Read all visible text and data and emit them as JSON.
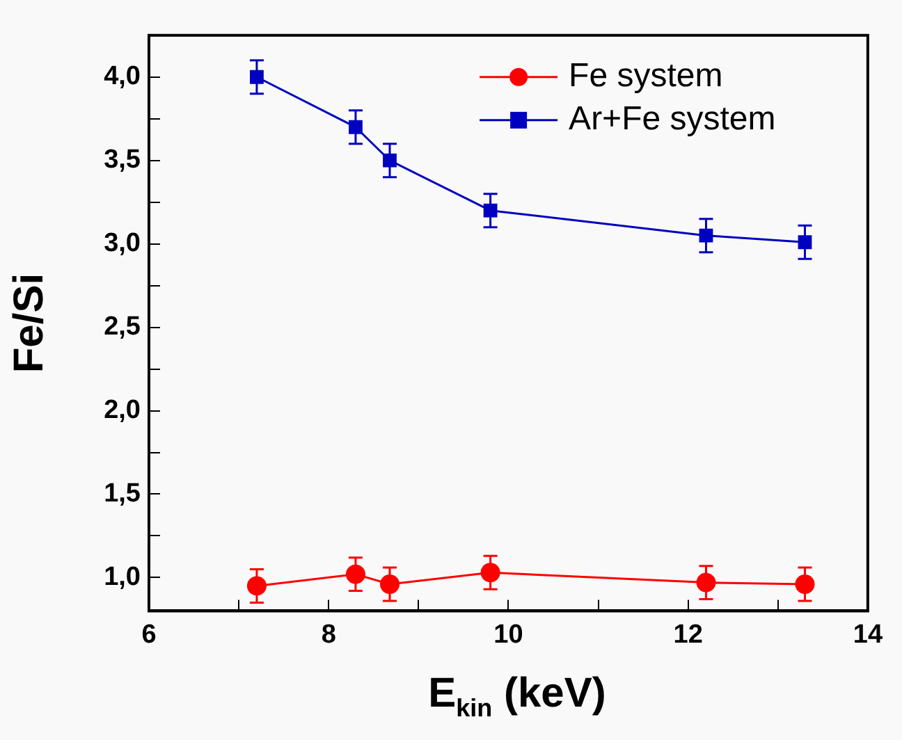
{
  "chart_data": {
    "type": "line",
    "xlabel": "E$_{kin}$ (keV)",
    "ylabel": "Fe/Si",
    "xlim": [
      6,
      14
    ],
    "xticks": [
      6,
      {
        "value": 7,
        "label": null
      },
      8,
      {
        "value": 9,
        "label": null
      },
      10,
      {
        "value": 11,
        "label": null
      },
      12,
      {
        "value": 13,
        "label": null
      },
      14
    ],
    "ylim": [
      0.8,
      4.25
    ],
    "yticks": [
      {
        "value": 1,
        "label": "1,0"
      },
      {
        "value": 1.25,
        "label": null
      },
      {
        "value": 1.5,
        "label": "1,5"
      },
      {
        "value": 1.75,
        "label": null
      },
      {
        "value": 2,
        "label": "2,0"
      },
      {
        "value": 2.25,
        "label": null
      },
      {
        "value": 2.5,
        "label": "2,5"
      },
      {
        "value": 2.75,
        "label": null
      },
      {
        "value": 3,
        "label": "3,0"
      },
      {
        "value": 3.25,
        "label": null
      },
      {
        "value": 3.5,
        "label": "3,5"
      },
      {
        "value": 3.75,
        "label": null
      },
      {
        "value": 4,
        "label": "4,0"
      }
    ],
    "grid": false,
    "legend": "top right",
    "line_style": "solid",
    "series": [
      {
        "name": "Fe system",
        "color": "#ff0000",
        "marker": "circle",
        "x": [
          7.2,
          8.3,
          8.68,
          9.8,
          12.2,
          13.3
        ],
        "values": [
          0.95,
          1.02,
          0.96,
          1.03,
          0.97,
          0.96
        ],
        "errors": [
          0.1,
          0.1,
          0.1,
          0.1,
          0.1,
          0.1
        ]
      },
      {
        "name": "Ar+Fe system",
        "color": "#0000c0",
        "marker": "square",
        "x": [
          7.2,
          8.3,
          8.68,
          9.8,
          12.2,
          13.3
        ],
        "values": [
          4.0,
          3.7,
          3.5,
          3.2,
          3.05,
          3.01
        ],
        "errors": [
          0.1,
          0.1,
          0.1,
          0.1,
          0.1,
          0.1
        ]
      }
    ]
  }
}
